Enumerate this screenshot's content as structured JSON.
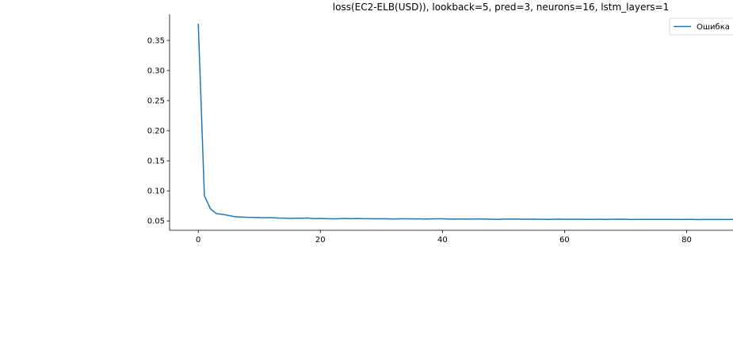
{
  "chart_data": {
    "type": "line",
    "title": "loss(EC2-ELB(USD)), lookback=5, pred=3, neurons=16, lstm_layers=1",
    "xlabel": "",
    "ylabel": "",
    "xlim": [
      -4.7,
      87.6
    ],
    "ylim": [
      0.0345,
      0.3935
    ],
    "xticks": [
      0,
      20,
      40,
      60,
      80
    ],
    "xtick_labels": [
      "0",
      "20",
      "40",
      "60",
      "80"
    ],
    "yticks": [
      0.05,
      0.1,
      0.15,
      0.2,
      0.25,
      0.3,
      0.35
    ],
    "ytick_labels": [
      "0.05",
      "0.10",
      "0.15",
      "0.20",
      "0.25",
      "0.30",
      "0.35"
    ],
    "legend": {
      "position": "top-right",
      "entries": [
        "Ошибка"
      ]
    },
    "grid": false,
    "series": [
      {
        "name": "Ошибка",
        "color": "#1f77b4",
        "x": [
          0,
          1,
          2,
          3,
          4,
          5,
          6,
          7,
          8,
          9,
          10,
          11,
          12,
          13,
          14,
          15,
          16,
          17,
          18,
          19,
          20,
          21,
          22,
          23,
          24,
          25,
          26,
          27,
          28,
          29,
          30,
          31,
          32,
          33,
          34,
          35,
          36,
          37,
          38,
          39,
          40,
          41,
          42,
          43,
          44,
          45,
          46,
          47,
          48,
          49,
          50,
          51,
          52,
          53,
          54,
          55,
          56,
          57,
          58,
          59,
          60,
          61,
          62,
          63,
          64,
          65,
          66,
          67,
          68,
          69,
          70,
          71,
          72,
          73,
          74,
          75,
          76,
          77,
          78,
          79,
          80,
          81,
          82,
          83,
          84,
          85,
          86,
          87,
          88
        ],
        "values": [
          0.378,
          0.092,
          0.07,
          0.062,
          0.061,
          0.059,
          0.057,
          0.0565,
          0.056,
          0.0558,
          0.0555,
          0.0553,
          0.0553,
          0.0548,
          0.0547,
          0.0543,
          0.0545,
          0.0545,
          0.0548,
          0.0538,
          0.0542,
          0.0538,
          0.0535,
          0.0537,
          0.0542,
          0.0537,
          0.054,
          0.0538,
          0.0538,
          0.0535,
          0.0537,
          0.0536,
          0.0532,
          0.0535,
          0.0535,
          0.0534,
          0.0535,
          0.0532,
          0.0534,
          0.0535,
          0.0535,
          0.0532,
          0.0531,
          0.0532,
          0.0531,
          0.0533,
          0.0534,
          0.0531,
          0.0529,
          0.0526,
          0.053,
          0.0531,
          0.0532,
          0.0529,
          0.0529,
          0.053,
          0.0528,
          0.0526,
          0.0527,
          0.053,
          0.0527,
          0.0527,
          0.0528,
          0.0528,
          0.0526,
          0.0527,
          0.0527,
          0.0525,
          0.0527,
          0.0529,
          0.0527,
          0.0524,
          0.0526,
          0.0526,
          0.0525,
          0.0526,
          0.0525,
          0.0526,
          0.0526,
          0.0524,
          0.0525,
          0.0526,
          0.0523,
          0.0525,
          0.0524,
          0.0526,
          0.0524,
          0.0524,
          0.0527
        ]
      }
    ]
  }
}
